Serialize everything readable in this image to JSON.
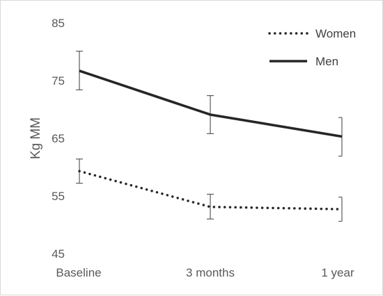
{
  "chart_data": {
    "type": "line",
    "ylabel": "Kg MM",
    "xlabel": "",
    "title": "",
    "categories": [
      "Baseline",
      "3 months",
      "1 year"
    ],
    "ylim": [
      45,
      85
    ],
    "yticks": [
      45,
      55,
      65,
      75,
      85
    ],
    "grid": false,
    "legend_position": "top-right",
    "series": [
      {
        "name": "Women",
        "style": "dotted",
        "color": "#262626",
        "values": [
          59.3,
          53.1,
          52.7
        ],
        "error_low": [
          57.2,
          51.0,
          50.6
        ],
        "error_high": [
          61.4,
          55.3,
          54.8
        ]
      },
      {
        "name": "Men",
        "style": "solid",
        "color": "#262626",
        "values": [
          76.7,
          69.1,
          65.3
        ],
        "error_low": [
          73.4,
          65.8,
          61.9
        ],
        "error_high": [
          80.1,
          72.4,
          68.6
        ]
      }
    ]
  }
}
